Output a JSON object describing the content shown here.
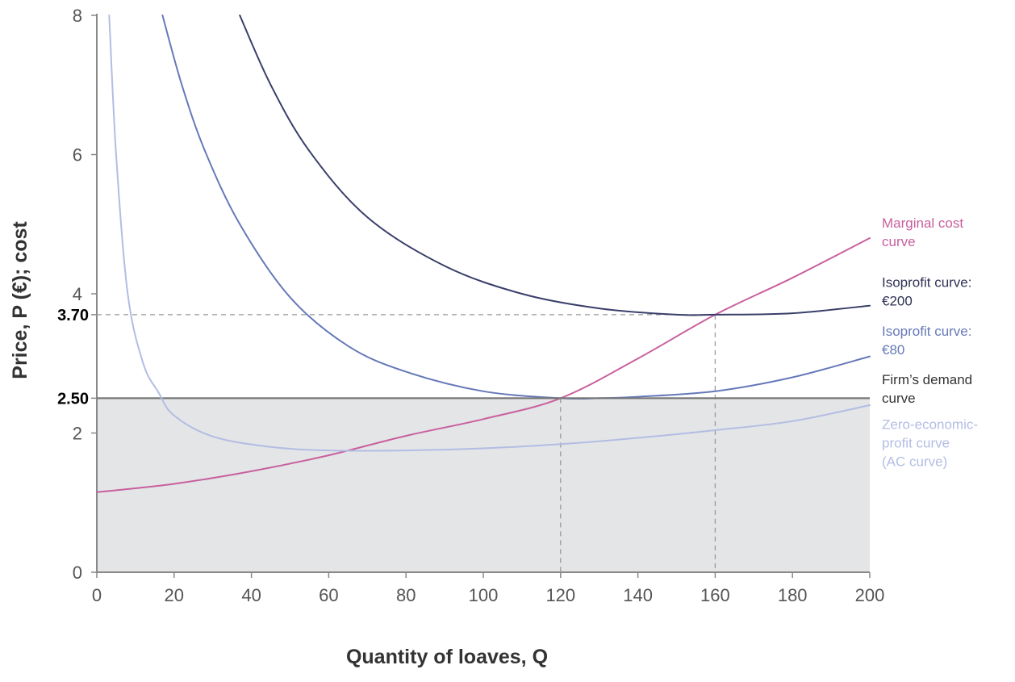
{
  "chart_data": {
    "type": "line",
    "title": "",
    "xlabel": "Quantity of loaves, Q",
    "ylabel": "Price, P (€); cost",
    "xlim": [
      0,
      200
    ],
    "ylim": [
      0,
      8
    ],
    "x_ticks": [
      "0",
      "20",
      "40",
      "60",
      "80",
      "100",
      "120",
      "140",
      "160",
      "180",
      "200"
    ],
    "y_ticks": [
      "0",
      "2",
      "4",
      "6",
      "8"
    ],
    "reference_lines": [
      {
        "label": "3.70",
        "y": 3.7,
        "x_end": 160
      },
      {
        "label": "2.50",
        "y": 2.5,
        "x_end": 200
      }
    ],
    "reference_verticals": [
      {
        "x": 120,
        "y_end": 2.5
      },
      {
        "x": 160,
        "y_end": 3.7
      }
    ],
    "shaded_region": {
      "x": [
        0,
        200
      ],
      "y": [
        0,
        2.5
      ]
    },
    "series": [
      {
        "name": "Marginal cost curve",
        "color": "#c8609e",
        "points": [
          [
            0,
            1.15
          ],
          [
            20,
            1.27
          ],
          [
            40,
            1.45
          ],
          [
            60,
            1.68
          ],
          [
            80,
            1.96
          ],
          [
            100,
            2.2
          ],
          [
            120,
            2.5
          ],
          [
            140,
            3.07
          ],
          [
            160,
            3.7
          ],
          [
            180,
            4.23
          ],
          [
            200,
            4.8
          ]
        ]
      },
      {
        "name": "Isoprofit curve: €200",
        "color": "#3a3f6a",
        "points": [
          [
            37,
            8.0
          ],
          [
            45,
            7.0
          ],
          [
            55,
            6.05
          ],
          [
            70,
            5.1
          ],
          [
            90,
            4.4
          ],
          [
            110,
            4.0
          ],
          [
            130,
            3.79
          ],
          [
            150,
            3.7
          ],
          [
            160,
            3.7
          ],
          [
            180,
            3.72
          ],
          [
            200,
            3.83
          ]
        ]
      },
      {
        "name": "Isoprofit curve: €80",
        "color": "#6679b9",
        "points": [
          [
            17,
            8.0
          ],
          [
            22,
            7.0
          ],
          [
            28,
            6.05
          ],
          [
            37,
            5.0
          ],
          [
            50,
            3.95
          ],
          [
            65,
            3.25
          ],
          [
            80,
            2.88
          ],
          [
            100,
            2.6
          ],
          [
            120,
            2.5
          ],
          [
            130,
            2.5
          ],
          [
            140,
            2.52
          ],
          [
            160,
            2.6
          ],
          [
            180,
            2.8
          ],
          [
            200,
            3.1
          ]
        ]
      },
      {
        "name": "Firm's demand curve",
        "color": "#777777",
        "points": [
          [
            0,
            2.5
          ],
          [
            200,
            2.5
          ]
        ]
      },
      {
        "name": "Zero-economic-profit curve (AC curve)",
        "color": "#b3bde3",
        "points": [
          [
            3.2,
            8.0
          ],
          [
            5,
            6.0
          ],
          [
            8,
            4.0
          ],
          [
            12,
            3.0
          ],
          [
            16,
            2.58
          ],
          [
            20,
            2.25
          ],
          [
            30,
            1.95
          ],
          [
            45,
            1.8
          ],
          [
            60,
            1.75
          ],
          [
            80,
            1.75
          ],
          [
            100,
            1.78
          ],
          [
            120,
            1.84
          ],
          [
            140,
            1.93
          ],
          [
            160,
            2.04
          ],
          [
            180,
            2.17
          ],
          [
            200,
            2.4
          ]
        ]
      }
    ],
    "legend": [
      {
        "lines": [
          "Marginal cost",
          "curve"
        ],
        "color": "#c8609e",
        "y_anchor": 4.95
      },
      {
        "lines": [
          "Isoprofit curve:",
          "€200"
        ],
        "color": "#2f3255",
        "y_anchor": 4.1
      },
      {
        "lines": [
          "Isoprofit curve:",
          "€80"
        ],
        "color": "#6679b9",
        "y_anchor": 3.4
      },
      {
        "lines": [
          "Firm’s demand",
          "curve"
        ],
        "color": "#333333",
        "y_anchor": 2.7
      },
      {
        "lines": [
          "Zero-economic-",
          "profit curve",
          "(AC curve)"
        ],
        "color": "#b3bde3",
        "y_anchor": 2.06
      }
    ],
    "colors": {
      "shade": "#e4e5e7",
      "axis": "#888888",
      "dashed": "#999999"
    }
  }
}
